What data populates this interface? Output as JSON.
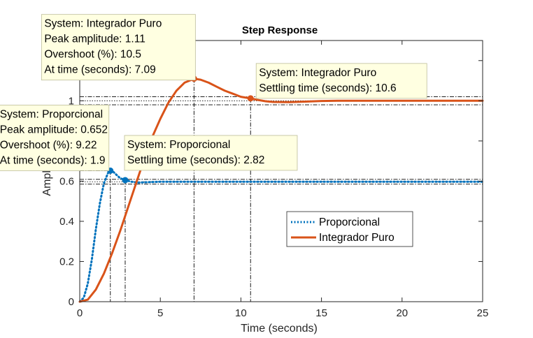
{
  "chart_data": {
    "type": "line",
    "title": "Step Response",
    "xlabel": "Time (seconds)",
    "ylabel": "Amplitude",
    "xlim": [
      0,
      25
    ],
    "ylim": [
      0,
      1.3
    ],
    "xticks": [
      0,
      5,
      10,
      15,
      20,
      25
    ],
    "yticks": [
      0,
      0.2,
      0.4,
      0.6,
      1
    ],
    "xtick_labels": [
      "0",
      "5",
      "10",
      "15",
      "20",
      "25"
    ],
    "ytick_labels": [
      "0",
      "0.2",
      "0.4",
      "0.6",
      "1"
    ],
    "grid": false,
    "legend_position": "center-right",
    "series": [
      {
        "name": "Proporcional",
        "color": "#0072BD",
        "style": "dotted",
        "final_value": 0.597,
        "x": [
          0,
          0.25,
          0.5,
          0.75,
          1.0,
          1.25,
          1.5,
          1.75,
          1.9,
          2.1,
          2.3,
          2.5,
          2.82,
          3.2,
          3.6,
          4.0,
          5,
          6,
          8,
          10,
          15,
          20,
          25
        ],
        "y": [
          0,
          0.02,
          0.09,
          0.21,
          0.36,
          0.49,
          0.59,
          0.64,
          0.652,
          0.645,
          0.63,
          0.615,
          0.605,
          0.597,
          0.593,
          0.594,
          0.597,
          0.597,
          0.597,
          0.597,
          0.597,
          0.597,
          0.597
        ]
      },
      {
        "name": "Integrador Puro",
        "color": "#D95319",
        "style": "solid",
        "final_value": 1.0,
        "x": [
          0,
          0.5,
          1,
          1.5,
          2,
          2.5,
          3,
          3.5,
          4,
          4.5,
          5,
          5.5,
          6,
          6.5,
          7.09,
          7.5,
          8,
          8.5,
          9,
          9.5,
          10,
          10.6,
          11,
          11.5,
          12,
          13,
          14,
          15,
          16,
          17,
          18,
          20,
          22,
          25
        ],
        "y": [
          0,
          0.01,
          0.06,
          0.14,
          0.24,
          0.35,
          0.47,
          0.59,
          0.71,
          0.82,
          0.91,
          0.99,
          1.05,
          1.09,
          1.11,
          1.105,
          1.09,
          1.07,
          1.05,
          1.035,
          1.02,
          1.012,
          1.005,
          0.998,
          0.994,
          0.993,
          0.996,
          0.999,
          1.0,
          1.0,
          1.0,
          1.0,
          1.0,
          1.0
        ]
      }
    ],
    "markers": [
      {
        "series": 0,
        "x": 1.9,
        "y": 0.652
      },
      {
        "series": 0,
        "x": 2.82,
        "y": 0.605
      },
      {
        "series": 1,
        "x": 7.09,
        "y": 1.11
      },
      {
        "series": 1,
        "x": 10.6,
        "y": 1.012
      }
    ],
    "datatips": [
      {
        "lines": [
          "System: Integrador Puro",
          "Peak amplitude: 1.11",
          "Overshoot (%): 10.5",
          "At time (seconds): 7.09"
        ]
      },
      {
        "lines": [
          "System: Integrador Puro",
          "Settling time (seconds): 10.6"
        ]
      },
      {
        "lines": [
          "System: Proporcional",
          "Peak amplitude: 0.652",
          "Overshoot (%): 9.22",
          "At time (seconds): 1.9"
        ]
      },
      {
        "lines": [
          "System: Proporcional",
          "Settling time (seconds): 2.82"
        ]
      }
    ]
  }
}
